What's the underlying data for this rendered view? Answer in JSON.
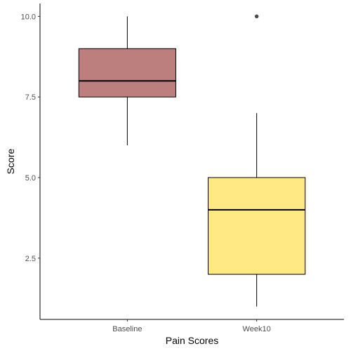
{
  "chart_data": {
    "type": "boxplot",
    "xlabel": "Pain Scores",
    "ylabel": "Score",
    "categories": [
      "Baseline",
      "Week10"
    ],
    "ylim": [
      0.6,
      10.4
    ],
    "yticks": [
      2.5,
      5.0,
      7.5,
      10.0
    ],
    "ytick_labels": [
      "2.5",
      "5.0",
      "7.5",
      "10.0"
    ],
    "grid": false,
    "legend": "none",
    "boxes": [
      {
        "category": "Baseline",
        "whisker_low": 6.0,
        "q1": 7.5,
        "median": 8.0,
        "q3": 9.0,
        "whisker_high": 10.0,
        "outliers": [],
        "fill": "#bd7f7e"
      },
      {
        "category": "Week10",
        "whisker_low": 1.0,
        "q1": 2.0,
        "median": 4.0,
        "q3": 5.0,
        "whisker_high": 7.0,
        "outliers": [
          10.0
        ],
        "fill": "#ffe985"
      }
    ]
  }
}
